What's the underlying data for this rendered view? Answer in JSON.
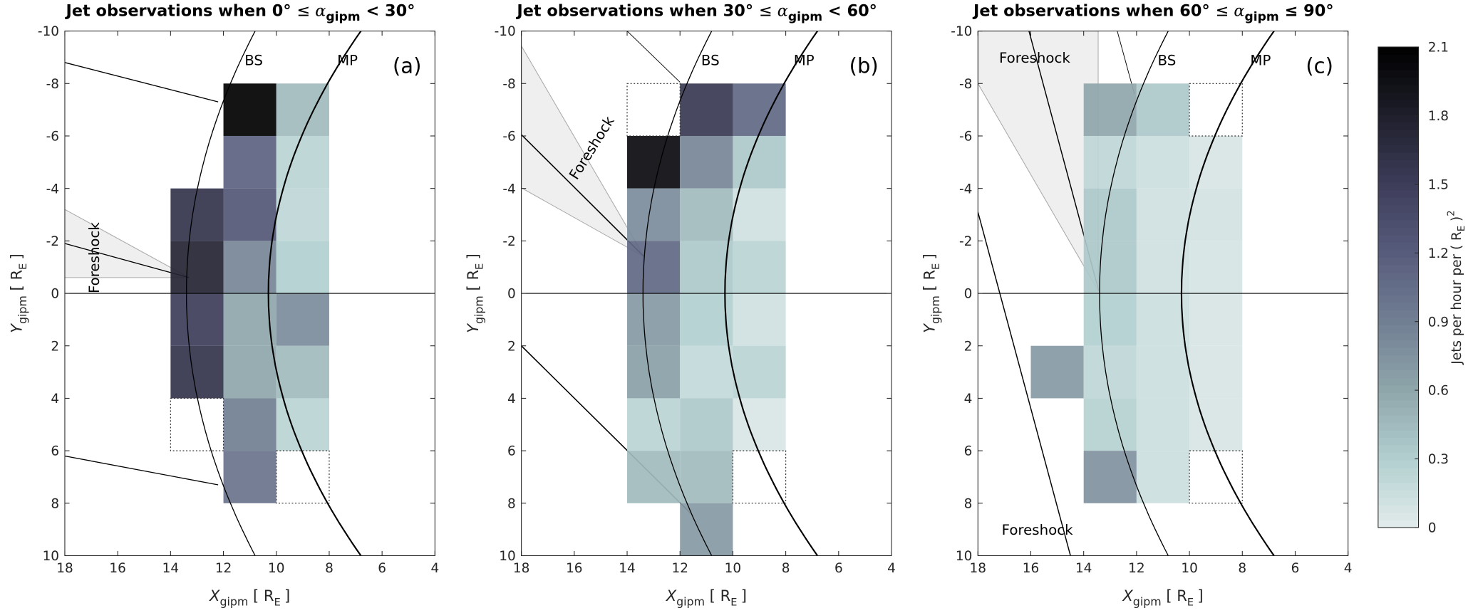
{
  "chart_data": {
    "type": "heatmap",
    "colorbar": {
      "label": "Jets per hour per ( R",
      "label_sub": "E",
      "label_tail": " )",
      "label_sup": "2",
      "range": [
        0,
        2.1
      ],
      "ticks": [
        "0",
        "0.3",
        "0.6",
        "0.9",
        "1.2",
        "1.5",
        "1.8",
        "2.1"
      ],
      "colormap_stops": [
        [
          0,
          "#e3ecec"
        ],
        [
          0.3,
          "#b2cfcf"
        ],
        [
          0.6,
          "#8fa6ab"
        ],
        [
          0.9,
          "#717f93"
        ],
        [
          1.2,
          "#585c7c"
        ],
        [
          1.5,
          "#3d3d5a"
        ],
        [
          1.8,
          "#1f1f2c"
        ],
        [
          2.1,
          "#000000"
        ]
      ]
    },
    "xlabel": {
      "main": "X",
      "sub": "gipm",
      "unit": " [ R",
      "unit_sub": "E",
      "unit_tail": "]"
    },
    "ylabel": {
      "main": "Y",
      "sub": "gipm",
      "unit": " [ R",
      "unit_sub": "E",
      "unit_tail": "]"
    },
    "xlim": [
      18,
      4
    ],
    "ylim": [
      -10,
      10
    ],
    "xticks": [
      "18",
      "16",
      "14",
      "12",
      "10",
      "8",
      "6",
      "4"
    ],
    "yticks": [
      "-10",
      "-8",
      "-6",
      "-4",
      "-2",
      "0",
      "2",
      "4",
      "6",
      "8",
      "10"
    ],
    "bin_size": 2,
    "panels": [
      {
        "title_prefix": "Jet observations when 0° ",
        "title_op1": "≤ ",
        "title_alpha": "α",
        "title_sub": "gipm",
        "title_suffix": " < 30°",
        "panel_label": "(a)",
        "bs_label": "BS",
        "mp_label": "MP",
        "foreshock_labels": [
          "Foreshock"
        ],
        "cells": [
          [
            14,
            -4,
            1.6
          ],
          [
            14,
            -2,
            1.75
          ],
          [
            14,
            0,
            1.5
          ],
          [
            14,
            2,
            1.6
          ],
          [
            12,
            -8,
            2.1
          ],
          [
            12,
            -6,
            1.15
          ],
          [
            12,
            -4,
            1.25
          ],
          [
            12,
            -2,
            0.85
          ],
          [
            12,
            0,
            0.6
          ],
          [
            12,
            2,
            0.6
          ],
          [
            12,
            4,
            0.9
          ],
          [
            12,
            6,
            1.0
          ],
          [
            10,
            -8,
            0.45
          ],
          [
            10,
            -6,
            0.25
          ],
          [
            10,
            -4,
            0.22
          ],
          [
            10,
            -2,
            0.3
          ],
          [
            10,
            0,
            0.8
          ],
          [
            10,
            2,
            0.45
          ],
          [
            10,
            4,
            0.25
          ]
        ],
        "empty_cells": [
          [
            14,
            4
          ],
          [
            10,
            6
          ]
        ]
      },
      {
        "title_prefix": "Jet observations when 30° ",
        "title_op1": "≤ ",
        "title_alpha": "α",
        "title_sub": "gipm",
        "title_suffix": " < 60°",
        "panel_label": "(b)",
        "bs_label": "BS",
        "mp_label": "MP",
        "foreshock_labels": [
          "Foreshock"
        ],
        "cells": [
          [
            14,
            -6,
            2.0
          ],
          [
            14,
            -4,
            0.8
          ],
          [
            14,
            -2,
            1.1
          ],
          [
            14,
            0,
            0.7
          ],
          [
            14,
            2,
            0.65
          ],
          [
            14,
            4,
            0.25
          ],
          [
            14,
            6,
            0.45
          ],
          [
            12,
            -8,
            1.55
          ],
          [
            12,
            -6,
            0.85
          ],
          [
            12,
            -4,
            0.45
          ],
          [
            12,
            -2,
            0.35
          ],
          [
            12,
            0,
            0.3
          ],
          [
            12,
            2,
            0.2
          ],
          [
            12,
            4,
            0.35
          ],
          [
            12,
            6,
            0.45
          ],
          [
            12,
            8,
            0.7
          ],
          [
            10,
            -8,
            1.1
          ],
          [
            10,
            -6,
            0.35
          ],
          [
            10,
            -4,
            0.12
          ],
          [
            10,
            -2,
            0.25
          ],
          [
            10,
            0,
            0.12
          ],
          [
            10,
            2,
            0.25
          ],
          [
            10,
            4,
            0.06
          ]
        ],
        "empty_cells": [
          [
            14,
            -8
          ],
          [
            10,
            6
          ]
        ]
      },
      {
        "title_prefix": "Jet observations when 60° ",
        "title_op1": "≤ ",
        "title_alpha": "α",
        "title_sub": "gipm",
        "title_suffix": " ≤ 90°",
        "panel_label": "(c)",
        "bs_label": "BS",
        "mp_label": "MP",
        "foreshock_labels": [
          "Foreshock",
          "Foreshock"
        ],
        "cells": [
          [
            16,
            2,
            0.7
          ],
          [
            14,
            -8,
            0.6
          ],
          [
            14,
            -6,
            0.22
          ],
          [
            14,
            -4,
            0.35
          ],
          [
            14,
            -2,
            0.35
          ],
          [
            14,
            0,
            0.3
          ],
          [
            14,
            2,
            0.22
          ],
          [
            14,
            4,
            0.28
          ],
          [
            14,
            6,
            0.75
          ],
          [
            12,
            -8,
            0.35
          ],
          [
            12,
            -6,
            0.15
          ],
          [
            12,
            -4,
            0.12
          ],
          [
            12,
            -2,
            0.12
          ],
          [
            12,
            0,
            0.15
          ],
          [
            12,
            2,
            0.15
          ],
          [
            12,
            4,
            0.15
          ],
          [
            12,
            6,
            0.15
          ],
          [
            10,
            -6,
            0.07
          ],
          [
            10,
            -4,
            0.1
          ],
          [
            10,
            -2,
            0.08
          ],
          [
            10,
            0,
            0.07
          ],
          [
            10,
            2,
            0.07
          ],
          [
            10,
            4,
            0.07
          ]
        ],
        "empty_cells": [
          [
            10,
            -8
          ],
          [
            10,
            6
          ]
        ]
      }
    ]
  }
}
